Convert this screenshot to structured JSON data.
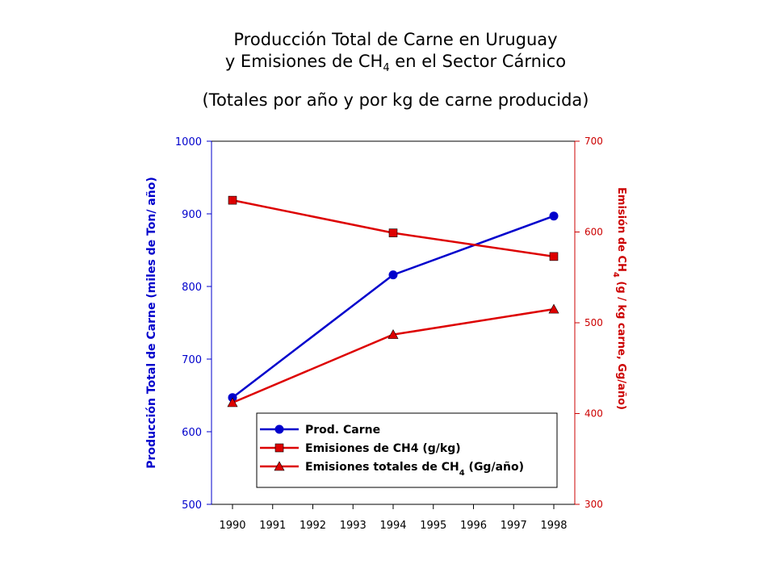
{
  "chart_data": {
    "type": "line",
    "title": {
      "line1": "Producción Total de Carne en Uruguay",
      "line2_pre": "y Emisiones de CH",
      "line2_sub": "4",
      "line2_post": " en el Sector Cárnico",
      "line3": "(Totales por año y por kg de carne producida)"
    },
    "x_categories": [
      "1990",
      "1991",
      "1992",
      "1993",
      "1994",
      "1995",
      "1996",
      "1997",
      "1998"
    ],
    "y_left": {
      "label": "Producción Total de Carne (miles de Ton/ año)",
      "ticks": [
        "500",
        "600",
        "700",
        "800",
        "900",
        "1000"
      ],
      "range": [
        500,
        1000
      ],
      "color": "#0000cc"
    },
    "y_right": {
      "label_pre": "Emisión de CH",
      "label_sub": "4",
      "label_post": " (g / kg carne, Gg/año)",
      "ticks": [
        "300",
        "400",
        "500",
        "600",
        "700"
      ],
      "range": [
        300,
        700
      ],
      "color": "#cc0000"
    },
    "series": [
      {
        "name": "Prod. Carne",
        "axis": "left",
        "marker": "circle",
        "color": "#0000cc",
        "x": [
          "1990",
          "1994",
          "1998"
        ],
        "values": [
          647,
          816,
          897
        ]
      },
      {
        "name": "Emisiones de CH4 (g/kg)",
        "axis": "right",
        "marker": "square",
        "color": "#dd0000",
        "x": [
          "1990",
          "1994",
          "1998"
        ],
        "values": [
          635,
          599,
          573
        ]
      },
      {
        "name": "Emisiones totales de CH4 (Gg/año)",
        "name_pre": "Emisiones totales de CH",
        "name_sub": "4",
        "name_post": " (Gg/año)",
        "axis": "right",
        "marker": "triangle",
        "color": "#dd0000",
        "x": [
          "1990",
          "1994",
          "1998"
        ],
        "values": [
          412,
          487,
          515
        ]
      }
    ],
    "grid": false,
    "legend_position": "bottom-center inside plot"
  }
}
